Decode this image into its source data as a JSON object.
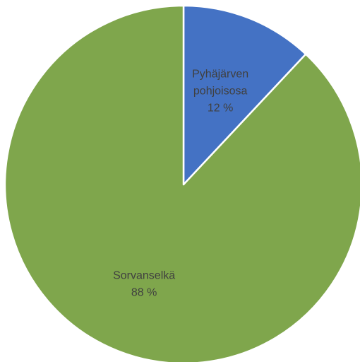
{
  "chart_data": {
    "type": "pie",
    "categories": [
      "Pyhäjärven pohjoisosa",
      "Sorvanselkä"
    ],
    "values": [
      12,
      88
    ],
    "value_labels": [
      "12 %",
      "88 %"
    ],
    "label_lines": [
      [
        "Pyhäjärven",
        "pohjoisosa"
      ],
      [
        "Sorvanselkä"
      ]
    ],
    "colors": [
      "#4472C4",
      "#7FA64C"
    ],
    "edge_color": "#ffffff",
    "start_angle": "12 o'clock",
    "direction": "clockwise",
    "legend": "none",
    "title": ""
  }
}
